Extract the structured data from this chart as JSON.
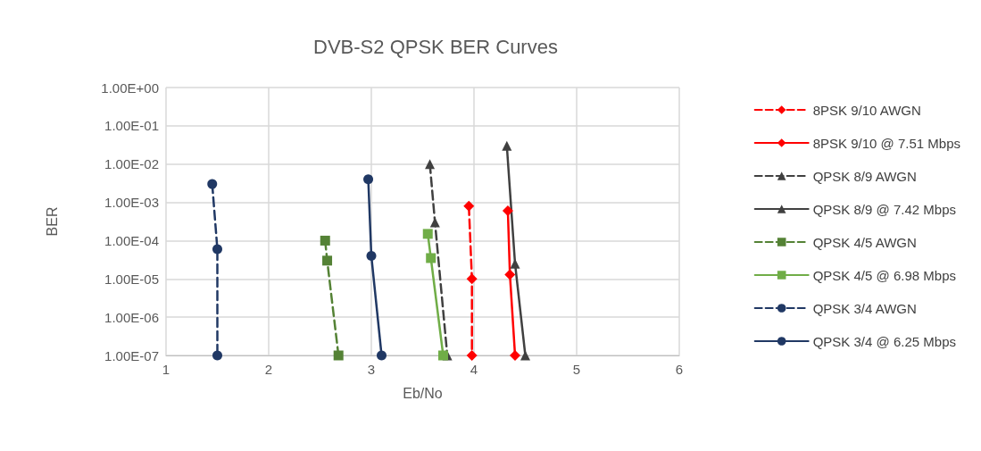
{
  "chart_data": {
    "type": "line",
    "title": "DVB-S2 QPSK BER Curves",
    "xlabel": "Eb/No",
    "ylabel": "BER",
    "log": "y",
    "grid": true,
    "legend": "right",
    "xlim": [
      1,
      6
    ],
    "xticks": [
      1,
      2,
      3,
      4,
      5,
      6
    ],
    "ylim": [
      1e-07,
      1
    ],
    "yticks": [
      {
        "value": 1,
        "label": "1.00E+00"
      },
      {
        "value": 0.1,
        "label": "1.00E-01"
      },
      {
        "value": 0.01,
        "label": "1.00E-02"
      },
      {
        "value": 0.001,
        "label": "1.00E-03"
      },
      {
        "value": 0.0001,
        "label": "1.00E-04"
      },
      {
        "value": 1e-05,
        "label": "1.00E-05"
      },
      {
        "value": 1e-06,
        "label": "1.00E-06"
      },
      {
        "value": 1e-07,
        "label": "1.00E-07"
      }
    ],
    "series": [
      {
        "name": "8PSK 9/10 AWGN",
        "color": "#ff0000",
        "marker": "diamond",
        "line_style": "dashed",
        "x": [
          3.95,
          3.98,
          3.98
        ],
        "values": [
          0.0008,
          1e-05,
          1e-07
        ]
      },
      {
        "name": "8PSK 9/10 @ 7.51 Mbps",
        "color": "#ff0000",
        "marker": "diamond",
        "line_style": "solid",
        "x": [
          4.33,
          4.35,
          4.4
        ],
        "values": [
          0.0006,
          1.3e-05,
          1e-07
        ]
      },
      {
        "name": "QPSK 8/9 AWGN",
        "color": "#404040",
        "marker": "triangle",
        "line_style": "dashed",
        "x": [
          3.57,
          3.62,
          3.74
        ],
        "values": [
          0.01,
          0.0003,
          1e-07
        ]
      },
      {
        "name": "QPSK 8/9 @ 7.42 Mbps",
        "color": "#404040",
        "marker": "triangle",
        "line_style": "solid",
        "x": [
          4.32,
          4.4,
          4.5
        ],
        "values": [
          0.03,
          2.5e-05,
          1e-07
        ]
      },
      {
        "name": "QPSK 4/5 AWGN",
        "color": "#548235",
        "marker": "square",
        "line_style": "dashed",
        "x": [
          2.55,
          2.57,
          2.68
        ],
        "values": [
          0.0001,
          3e-05,
          1e-07
        ]
      },
      {
        "name": "QPSK 4/5 @ 6.98 Mbps",
        "color": "#70ad47",
        "marker": "square",
        "line_style": "solid",
        "x": [
          3.55,
          3.58,
          3.7
        ],
        "values": [
          0.00015,
          3.5e-05,
          1e-07
        ]
      },
      {
        "name": "QPSK 3/4 AWGN",
        "color": "#203864",
        "marker": "circle",
        "line_style": "dashed",
        "x": [
          1.45,
          1.5,
          1.5
        ],
        "values": [
          0.003,
          6e-05,
          1e-07
        ]
      },
      {
        "name": "QPSK 3/4 @ 6.25 Mbps",
        "color": "#203864",
        "marker": "circle",
        "line_style": "solid",
        "x": [
          2.97,
          3.0,
          3.1
        ],
        "values": [
          0.004,
          4e-05,
          1e-07
        ]
      }
    ]
  }
}
